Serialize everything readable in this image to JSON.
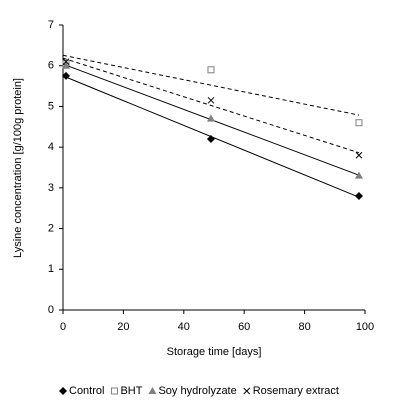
{
  "chart_data": {
    "type": "scatter",
    "x_label": "Storage time [days]",
    "y_label": "Lysine concentration [g/100g protein]",
    "x": [
      1,
      49,
      98
    ],
    "series": [
      {
        "name": "Control",
        "color": "#000000",
        "marker": "diamond",
        "trendline": "solid",
        "values": [
          5.75,
          4.2,
          2.8
        ]
      },
      {
        "name": "BHT",
        "color": "#808080",
        "marker": "square",
        "trendline": "dashed",
        "values": [
          6.05,
          5.9,
          4.6
        ]
      },
      {
        "name": "Soy hydrolyzate",
        "color": "#808080",
        "marker": "triangle",
        "trendline": "solid",
        "values": [
          6.0,
          4.7,
          3.3
        ]
      },
      {
        "name": "Rosemary extract",
        "color": "#000000",
        "marker": "x",
        "trendline": "dashed",
        "values": [
          6.1,
          5.15,
          3.8
        ]
      }
    ],
    "xlim": [
      0,
      100
    ],
    "xticks": [
      0,
      20,
      40,
      60,
      80,
      100
    ],
    "ylim": [
      0,
      7
    ],
    "yticks": [
      0,
      1,
      2,
      3,
      4,
      5,
      6,
      7
    ],
    "legend": "bottom"
  }
}
